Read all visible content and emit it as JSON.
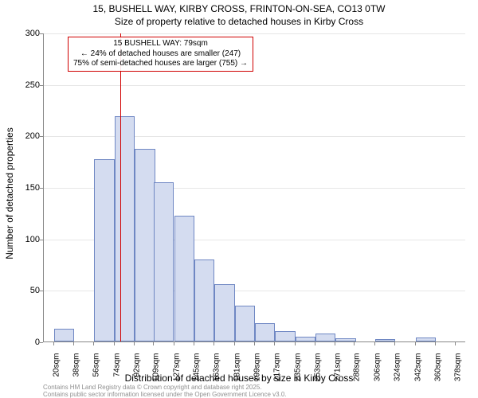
{
  "title": {
    "line1": "15, BUSHELL WAY, KIRBY CROSS, FRINTON-ON-SEA, CO13 0TW",
    "line2": "Size of property relative to detached houses in Kirby Cross"
  },
  "y_axis": {
    "label": "Number of detached properties",
    "min": 0,
    "max": 300,
    "tick_step": 50,
    "ticks": [
      0,
      50,
      100,
      150,
      200,
      250,
      300
    ]
  },
  "x_axis": {
    "label": "Distribution of detached houses by size in Kirby Cross",
    "tick_labels": [
      "20sqm",
      "38sqm",
      "56sqm",
      "74sqm",
      "92sqm",
      "109sqm",
      "127sqm",
      "145sqm",
      "163sqm",
      "181sqm",
      "199sqm",
      "217sqm",
      "235sqm",
      "253sqm",
      "271sqm",
      "288sqm",
      "306sqm",
      "324sqm",
      "342sqm",
      "360sqm",
      "378sqm"
    ],
    "domain_min": 11,
    "domain_max": 387
  },
  "histogram": {
    "type": "histogram",
    "bin_width": 18,
    "bar_fill": "#d4dcf0",
    "bar_stroke": "#6f87c3",
    "bins": [
      {
        "start": 20,
        "count": 12
      },
      {
        "start": 38,
        "count": 0
      },
      {
        "start": 56,
        "count": 177
      },
      {
        "start": 74,
        "count": 219
      },
      {
        "start": 92,
        "count": 187
      },
      {
        "start": 109,
        "count": 155
      },
      {
        "start": 127,
        "count": 122
      },
      {
        "start": 145,
        "count": 80
      },
      {
        "start": 163,
        "count": 56
      },
      {
        "start": 181,
        "count": 35
      },
      {
        "start": 199,
        "count": 18
      },
      {
        "start": 217,
        "count": 10
      },
      {
        "start": 235,
        "count": 5
      },
      {
        "start": 253,
        "count": 8
      },
      {
        "start": 271,
        "count": 3
      },
      {
        "start": 288,
        "count": 0
      },
      {
        "start": 306,
        "count": 2
      },
      {
        "start": 324,
        "count": 0
      },
      {
        "start": 342,
        "count": 4
      },
      {
        "start": 360,
        "count": 0
      }
    ]
  },
  "marker": {
    "value_sqm": 79,
    "color": "#d00000"
  },
  "annotation": {
    "line1": "15 BUSHELL WAY: 79sqm",
    "line2": "← 24% of detached houses are smaller (247)",
    "line3": "75% of semi-detached houses are larger (755) →",
    "border_color": "#d00000"
  },
  "attribution": {
    "line1": "Contains HM Land Registry data © Crown copyright and database right 2025.",
    "line2": "Contains public sector information licensed under the Open Government Licence v3.0."
  },
  "style": {
    "background_color": "#ffffff",
    "grid_color": "#e6e6e6",
    "axis_color": "#888888",
    "text_color": "#000000",
    "attribution_color": "#909090",
    "title_fontsize": 12,
    "axis_label_fontsize": 12,
    "tick_fontsize": 11,
    "x_tick_fontsize": 10,
    "annotation_fontsize": 10,
    "attribution_fontsize": 8
  }
}
